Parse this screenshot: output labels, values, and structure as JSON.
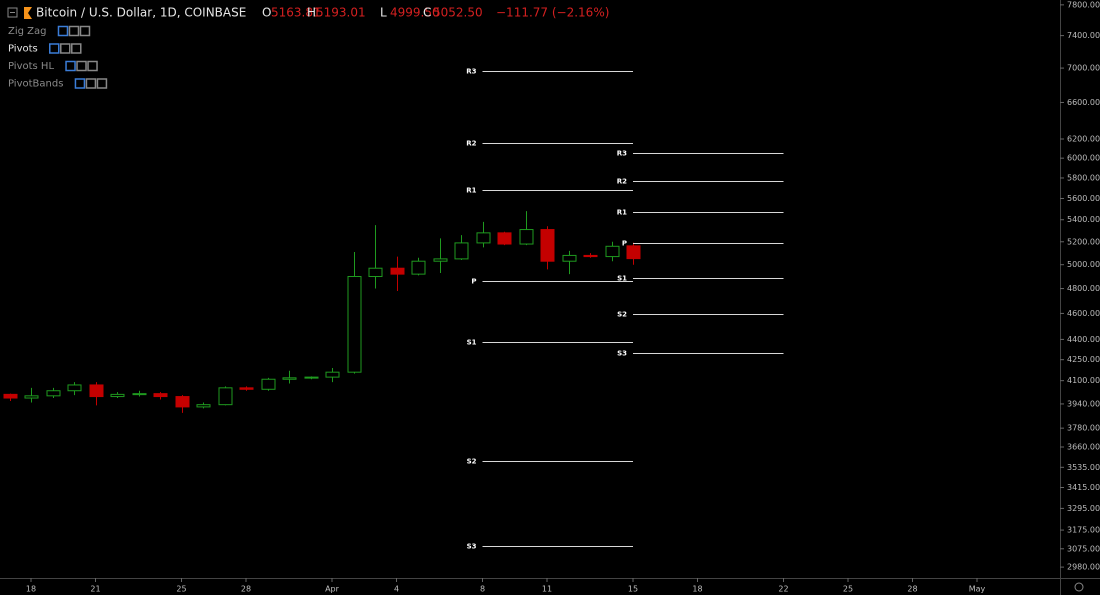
{
  "chart_data": {
    "type": "candlestick",
    "title": "Bitcoin / U.S. Dollar, 1D, COINBASE",
    "header": {
      "o_label": "O",
      "o": "5163.81",
      "h_label": "H",
      "h": "5193.01",
      "l_label": "L",
      "l": "4999.50",
      "c_label": "C",
      "c": "5052.50",
      "change": "−111.77 (−2.16%)"
    },
    "indicators": [
      "Zig Zag",
      "Pivots",
      "Pivots HL",
      "PivotBands"
    ],
    "y_scale": "log",
    "up_color": "#1f9a1f",
    "down_color": "#c40000",
    "x": [
      "03-17",
      "03-18",
      "03-19",
      "03-20",
      "03-21",
      "03-22",
      "03-23",
      "03-24",
      "03-25",
      "03-26",
      "03-27",
      "03-28",
      "03-29",
      "03-30",
      "03-31",
      "04-01",
      "04-02",
      "04-03",
      "04-04",
      "04-05",
      "04-06",
      "04-07",
      "04-08",
      "04-09",
      "04-10",
      "04-11",
      "04-12",
      "04-13",
      "04-14",
      "04-15"
    ],
    "open": [
      4005,
      3980,
      3995,
      4030,
      4070,
      3990,
      4005,
      4010,
      3990,
      3920,
      3935,
      4050,
      4040,
      4110,
      4120,
      4125,
      4160,
      4900,
      4970,
      4920,
      5030,
      5050,
      5190,
      5280,
      5180,
      5310,
      5030,
      5080,
      5070,
      5163.81
    ],
    "high": [
      4010,
      4050,
      4050,
      4090,
      4090,
      4020,
      4030,
      4020,
      4000,
      3950,
      4060,
      4060,
      4120,
      4170,
      4130,
      4190,
      5110,
      5350,
      5070,
      5060,
      5230,
      5260,
      5380,
      5290,
      5480,
      5340,
      5120,
      5100,
      5200,
      5193.01
    ],
    "low": [
      3960,
      3950,
      3980,
      4000,
      3930,
      3980,
      3990,
      3970,
      3880,
      3910,
      3930,
      4030,
      4030,
      4080,
      4110,
      4090,
      4150,
      4800,
      4780,
      4910,
      4930,
      5040,
      5150,
      5170,
      5170,
      4960,
      4920,
      5060,
      5030,
      4999.5
    ],
    "close": [
      3980,
      3995,
      4030,
      4070,
      3990,
      4005,
      4010,
      3990,
      3920,
      3935,
      4050,
      4040,
      4110,
      4120,
      4125,
      4160,
      4900,
      4970,
      4920,
      5030,
      5050,
      5190,
      5280,
      5180,
      5310,
      5030,
      5080,
      5070,
      5160,
      5052.5
    ],
    "pivots": [
      {
        "start": "04-08",
        "end": "04-15",
        "levels": [
          {
            "label": "R3",
            "value": 6966
          },
          {
            "label": "R2",
            "value": 6158
          },
          {
            "label": "R1",
            "value": 5682
          },
          {
            "label": "P",
            "value": 4862
          },
          {
            "label": "S1",
            "value": 4380
          },
          {
            "label": "S2",
            "value": 3572
          },
          {
            "label": "S3",
            "value": 3089
          }
        ]
      },
      {
        "start": "04-15",
        "end": "04-22",
        "levels": [
          {
            "label": "R3",
            "value": 6053
          },
          {
            "label": "R2",
            "value": 5771
          },
          {
            "label": "R1",
            "value": 5472
          },
          {
            "label": "P",
            "value": 5189
          },
          {
            "label": "S1",
            "value": 4887
          },
          {
            "label": "S2",
            "value": 4596
          },
          {
            "label": "S3",
            "value": 4298
          }
        ]
      }
    ],
    "ylim": [
      2925,
      7865
    ],
    "yticks": [
      {
        "value": 7800,
        "label": "7800.00"
      },
      {
        "value": 7400,
        "label": "7400.00"
      },
      {
        "value": 7000,
        "label": "7000.00"
      },
      {
        "value": 6600,
        "label": "6600.00"
      },
      {
        "value": 6200,
        "label": "6200.00"
      },
      {
        "value": 6000,
        "label": "6000.00"
      },
      {
        "value": 5800,
        "label": "5800.00"
      },
      {
        "value": 5600,
        "label": "5600.00"
      },
      {
        "value": 5400,
        "label": "5400.00"
      },
      {
        "value": 5200,
        "label": "5200.00"
      },
      {
        "value": 5000,
        "label": "5000.00"
      },
      {
        "value": 4800,
        "label": "4800.00"
      },
      {
        "value": 4600,
        "label": "4600.00"
      },
      {
        "value": 4400,
        "label": "4400.00"
      },
      {
        "value": 4250,
        "label": "4250.00"
      },
      {
        "value": 4100,
        "label": "4100.00"
      },
      {
        "value": 3940,
        "label": "3940.00"
      },
      {
        "value": 3780,
        "label": "3780.00"
      },
      {
        "value": 3660,
        "label": "3660.00"
      },
      {
        "value": 3535,
        "label": "3535.00"
      },
      {
        "value": 3415,
        "label": "3415.00"
      },
      {
        "value": 3295,
        "label": "3295.00"
      },
      {
        "value": 3175,
        "label": "3175.00"
      },
      {
        "value": 3075,
        "label": "3075.00"
      },
      {
        "value": 2980,
        "label": "2980.00"
      }
    ],
    "xticks": [
      {
        "value": "03-18",
        "label": "18"
      },
      {
        "value": "03-21",
        "label": "21"
      },
      {
        "value": "03-25",
        "label": "25"
      },
      {
        "value": "03-28",
        "label": "28"
      },
      {
        "value": "04-01",
        "label": "Apr"
      },
      {
        "value": "04-04",
        "label": "4"
      },
      {
        "value": "04-08",
        "label": "8"
      },
      {
        "value": "04-11",
        "label": "11"
      },
      {
        "value": "04-15",
        "label": "15"
      },
      {
        "value": "04-18",
        "label": "18"
      },
      {
        "value": "04-22",
        "label": "22"
      },
      {
        "value": "04-25",
        "label": "25"
      },
      {
        "value": "04-28",
        "label": "28"
      },
      {
        "value": "05-01",
        "label": "May"
      }
    ]
  }
}
